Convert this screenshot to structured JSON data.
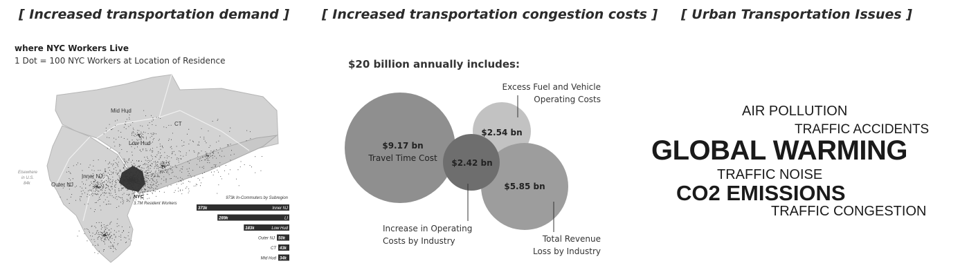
{
  "headings": {
    "demand": "[ Increased transportation demand ]",
    "congestion": "[ Increased transportation congestion costs ]",
    "issues": "[ Urban Transportation Issues ]"
  },
  "map": {
    "title": "where NYC Workers Live",
    "subtitle": "1 Dot = 100 NYC Workers at Location of Residence",
    "region_labels": {
      "mid_hud": "Mid Hud",
      "ct": "CT",
      "low_hud": "Low Hud",
      "inner_nj": "Inner NJ",
      "outer_nj": "Outer NJ",
      "elsewhere": "Elsewhere",
      "elsewhere2": "in U.S.",
      "elsewhere3": "84k",
      "nyc": "NYC",
      "nyc_sub": "3.7M Resident Workers"
    },
    "commuters_title": "973k In-Commuters by Subregion",
    "commuters": [
      {
        "label": "Inner NJ",
        "value": "373k",
        "num": 373
      },
      {
        "label": "LI",
        "value": "289k",
        "num": 289
      },
      {
        "label": "Low Hud",
        "value": "183k",
        "num": 183
      },
      {
        "label": "Outer NJ",
        "value": "50k",
        "num": 50
      },
      {
        "label": "CT",
        "value": "43k",
        "num": 43
      },
      {
        "label": "Mid Hud",
        "value": "34k",
        "num": 34
      }
    ]
  },
  "costs": {
    "title": "$20 billion annually includes:",
    "bubbles": [
      {
        "value": "$9.17 bn",
        "label": "Travel Time Cost"
      },
      {
        "value": "$2.54 bn"
      },
      {
        "value": "$2.42 bn"
      },
      {
        "value": "$5.85 bn"
      }
    ],
    "callouts": {
      "fuel_1": "Excess Fuel and Vehicle",
      "fuel_2": "Operating Costs",
      "ops_1": "Increase in Operating",
      "ops_2": "Costs by Industry",
      "rev_1": "Total Revenue",
      "rev_2": "Loss by Industry"
    }
  },
  "issues": {
    "air": "AIR POLLUTION",
    "accidents": "TRAFFIC ACCIDENTS",
    "warming": "GLOBAL WARMING",
    "noise": "TRAFFIC NOISE",
    "co2": "CO2 EMISSIONS",
    "congestion": "TRAFFIC CONGESTION"
  },
  "colors": {
    "bubble_large": "#8f8f8f",
    "bubble_light": "#c2c2c2",
    "bubble_overlap": "#6e6e6e",
    "map_fill": "#d3d3d3"
  }
}
